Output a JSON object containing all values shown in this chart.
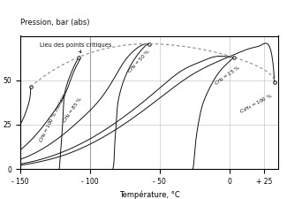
{
  "title": "Pression, bar (abs)",
  "xlabel": "Température, °C",
  "xlim": [
    -150,
    35
  ],
  "ylim": [
    0,
    75
  ],
  "xticks": [
    -150,
    -100,
    -50,
    0,
    25
  ],
  "xtick_labels": [
    "- 150",
    "- 100",
    "- 50",
    "0",
    "+ 25"
  ],
  "yticks": [
    0,
    25,
    50
  ],
  "background_color": "#ffffff",
  "grid_color": "#bbbbbb",
  "curve_color": "#111111",
  "dashed_color": "#888888",
  "locus_label": "Lieu des points critiques",
  "locus_points": [
    [
      -142.5,
      46.4
    ],
    [
      -108,
      63
    ],
    [
      -57.5,
      70.5
    ],
    [
      3,
      63
    ],
    [
      32.2,
      48.7
    ]
  ]
}
